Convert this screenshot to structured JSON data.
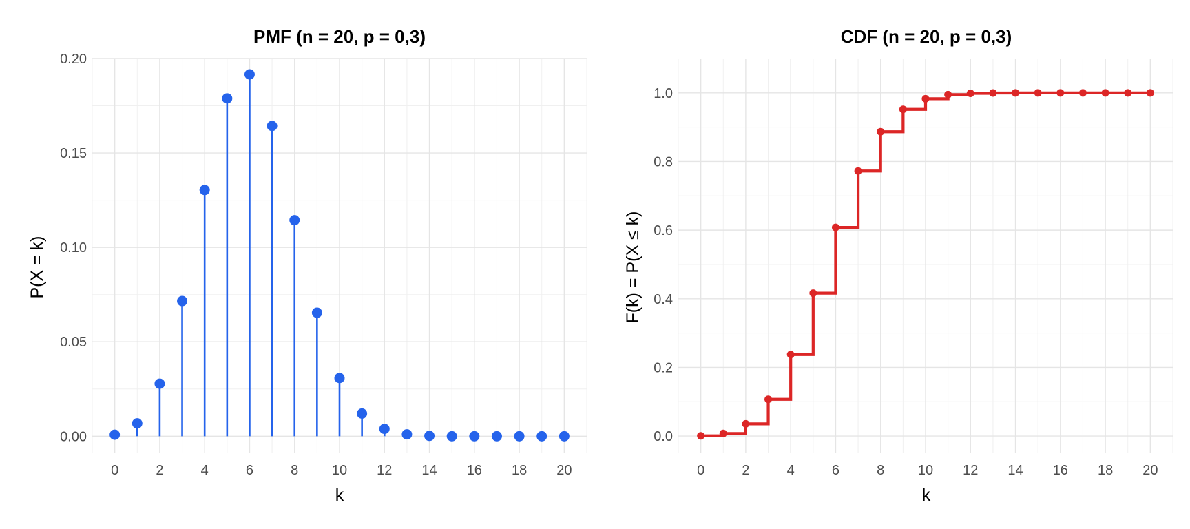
{
  "chart_data": [
    {
      "type": "lollipop",
      "title": "PMF  (n = 20, p = 0,3)",
      "xlabel": "k",
      "ylabel": "P(X = k)",
      "xlim": [
        -1,
        21
      ],
      "ylim": [
        -0.009,
        0.2
      ],
      "x_ticks": [
        0,
        2,
        4,
        6,
        8,
        10,
        12,
        14,
        16,
        18,
        20
      ],
      "y_ticks": [
        0.0,
        0.05,
        0.1,
        0.15,
        0.2
      ],
      "y_tick_labels": [
        "0.00",
        "0.05",
        "0.10",
        "0.15",
        "0.20"
      ],
      "grid": true,
      "color": "#2563eb",
      "x": [
        0,
        1,
        2,
        3,
        4,
        5,
        6,
        7,
        8,
        9,
        10,
        11,
        12,
        13,
        14,
        15,
        16,
        17,
        18,
        19,
        20
      ],
      "values": [
        0.0008,
        0.0068,
        0.0278,
        0.0716,
        0.1304,
        0.1789,
        0.1916,
        0.1643,
        0.1144,
        0.0654,
        0.0308,
        0.012,
        0.0039,
        0.001,
        0.0002,
        0.0,
        0.0,
        0.0,
        0.0,
        0.0,
        0.0
      ]
    },
    {
      "type": "step",
      "title": "CDF  (n = 20, p = 0,3)",
      "xlabel": "k",
      "ylabel": "F(k) = P(X ≤ k)",
      "xlim": [
        -1,
        21
      ],
      "ylim": [
        -0.05,
        1.1
      ],
      "x_ticks": [
        0,
        2,
        4,
        6,
        8,
        10,
        12,
        14,
        16,
        18,
        20
      ],
      "y_ticks": [
        0.0,
        0.2,
        0.4,
        0.6,
        0.8,
        1.0
      ],
      "y_tick_labels": [
        "0.0",
        "0.2",
        "0.4",
        "0.6",
        "0.8",
        "1.0"
      ],
      "grid": true,
      "color": "#dc2626",
      "x": [
        0,
        1,
        2,
        3,
        4,
        5,
        6,
        7,
        8,
        9,
        10,
        11,
        12,
        13,
        14,
        15,
        16,
        17,
        18,
        19,
        20
      ],
      "values": [
        0.0008,
        0.0076,
        0.0355,
        0.1071,
        0.2375,
        0.4164,
        0.608,
        0.7723,
        0.8867,
        0.952,
        0.9829,
        0.9949,
        0.9987,
        0.9997,
        1.0,
        1.0,
        1.0,
        1.0,
        1.0,
        1.0,
        1.0
      ]
    }
  ]
}
